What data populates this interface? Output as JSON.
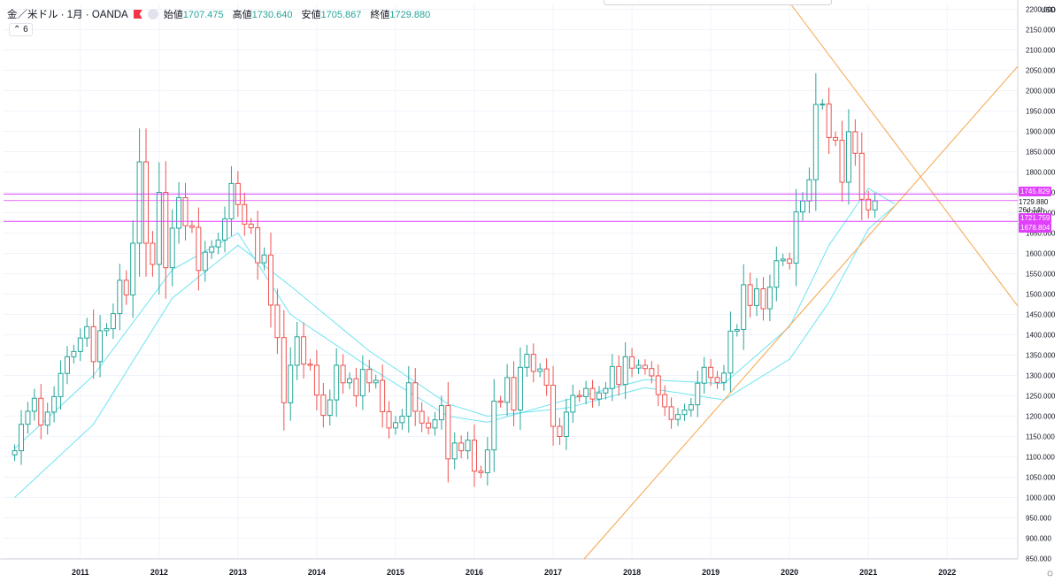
{
  "header": {
    "symbol": "金／米ドル · 1月 · OANDA",
    "open_label": "始値",
    "open": "1707.475",
    "high_label": "高値",
    "high": "1730.640",
    "low_label": "安値",
    "low": "1705.867",
    "close_label": "終値",
    "close": "1729.880",
    "indicator_count": "6"
  },
  "axis": {
    "currency": "USD",
    "price_ticks": [
      "850.000",
      "900.000",
      "950.000",
      "1000.000",
      "1050.000",
      "1100.000",
      "1150.000",
      "1200.000",
      "1250.000",
      "1300.000",
      "1350.000",
      "1400.000",
      "1450.000",
      "1500.000",
      "1550.000",
      "1600.000",
      "1650.000",
      "1700.000",
      "1750.000",
      "1800.000",
      "1850.000",
      "1900.000",
      "1950.000",
      "2000.000",
      "2050.000",
      "2100.000",
      "2150.000",
      "2200.000"
    ],
    "year_ticks": [
      "2011",
      "2012",
      "2013",
      "2014",
      "2015",
      "2016",
      "2017",
      "2018",
      "2019",
      "2020",
      "2021",
      "2022"
    ]
  },
  "price_labels": {
    "level1": "1745.829",
    "current": "1729.880",
    "countdown": "26d 14h",
    "level2": "1721.759",
    "level3": "1678.804"
  },
  "colors": {
    "up": "#26a69a",
    "down": "#ef5350",
    "ma": "#5ee0f0",
    "trendline": "#f5a54a",
    "level": "#e040fb"
  },
  "chart_data": {
    "type": "candlestick",
    "symbol": "XAU/USD",
    "interval": "1M",
    "ylim": [
      840,
      2210
    ],
    "x_start": "2010-03",
    "years": [
      "2011",
      "2012",
      "2013",
      "2014",
      "2015",
      "2016",
      "2017",
      "2018",
      "2019",
      "2020",
      "2021",
      "2022"
    ],
    "horizontal_levels": [
      1745.829,
      1729.88,
      1721.759,
      1678.804
    ],
    "closes": [
      1115,
      1180,
      1212,
      1244,
      1178,
      1210,
      1248,
      1305,
      1346,
      1359,
      1392,
      1420,
      1334,
      1410,
      1415,
      1452,
      1534,
      1498,
      1625,
      1825,
      1625,
      1573,
      1750,
      1565,
      1662,
      1737,
      1668,
      1664,
      1558,
      1603,
      1616,
      1633,
      1685,
      1772,
      1720,
      1672,
      1663,
      1577,
      1596,
      1473,
      1393,
      1233,
      1325,
      1395,
      1328,
      1325,
      1252,
      1202,
      1240,
      1325,
      1282,
      1292,
      1250,
      1315,
      1282,
      1288,
      1211,
      1171,
      1184,
      1200,
      1282,
      1212,
      1183,
      1171,
      1191,
      1226,
      1095,
      1134,
      1115,
      1141,
      1065,
      1061,
      1117,
      1237,
      1234,
      1295,
      1215,
      1320,
      1352,
      1310,
      1316,
      1276,
      1175,
      1150,
      1210,
      1251,
      1248,
      1268,
      1242,
      1257,
      1268,
      1322,
      1278,
      1346,
      1318,
      1325,
      1317,
      1299,
      1253,
      1223,
      1192,
      1204,
      1215,
      1228,
      1281,
      1320,
      1295,
      1283,
      1306,
      1409,
      1413,
      1523,
      1472,
      1513,
      1464,
      1517,
      1582,
      1586,
      1576,
      1702,
      1729,
      1781,
      1966,
      1967,
      1885,
      1878,
      1775,
      1899,
      1846,
      1733,
      1707,
      1729
    ],
    "ma_short_points": [
      [
        0,
        1120
      ],
      [
        12,
        1300
      ],
      [
        24,
        1560
      ],
      [
        34,
        1650
      ],
      [
        42,
        1450
      ],
      [
        54,
        1320
      ],
      [
        66,
        1200
      ],
      [
        72,
        1185
      ],
      [
        84,
        1240
      ],
      [
        96,
        1290
      ],
      [
        108,
        1280
      ],
      [
        118,
        1420
      ],
      [
        124,
        1620
      ],
      [
        130,
        1760
      ],
      [
        134,
        1722
      ]
    ],
    "ma_long_points": [
      [
        0,
        1000
      ],
      [
        12,
        1180
      ],
      [
        24,
        1490
      ],
      [
        34,
        1620
      ],
      [
        42,
        1520
      ],
      [
        54,
        1360
      ],
      [
        66,
        1230
      ],
      [
        72,
        1200
      ],
      [
        84,
        1220
      ],
      [
        96,
        1270
      ],
      [
        108,
        1240
      ],
      [
        118,
        1340
      ],
      [
        124,
        1480
      ],
      [
        130,
        1660
      ],
      [
        134,
        1717
      ]
    ]
  }
}
